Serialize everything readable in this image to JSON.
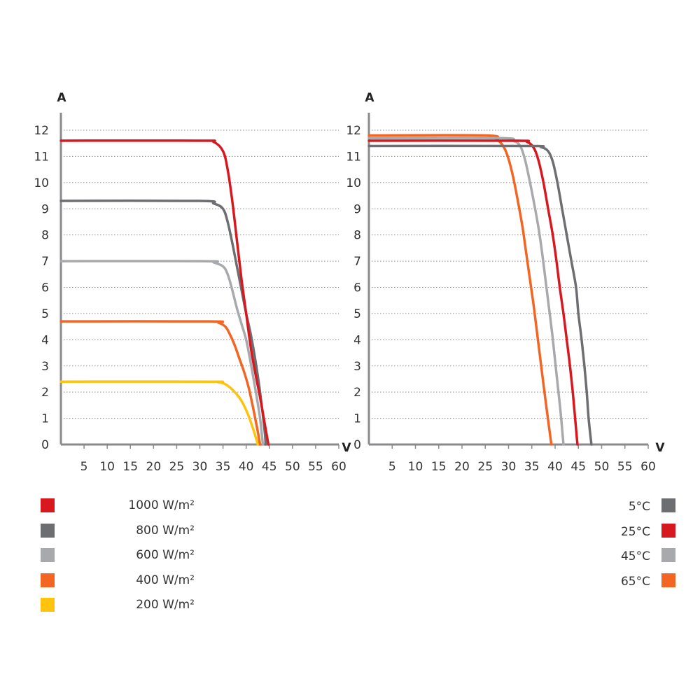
{
  "chart_data": [
    {
      "type": "line",
      "title": "",
      "xlabel": "V",
      "ylabel": "A",
      "xlim": [
        0,
        60
      ],
      "ylim": [
        0,
        12
      ],
      "x_ticks": [
        "5",
        "10",
        "15",
        "20",
        "25",
        "30",
        "35",
        "40",
        "45",
        "60"
      ],
      "x_ticks_all": [
        5,
        10,
        15,
        20,
        25,
        30,
        35,
        40,
        45,
        50,
        55,
        60
      ],
      "x_tick_labels": [
        "5",
        "10",
        "15",
        "20",
        "25",
        "30",
        "35",
        "40",
        "45",
        "50",
        "55",
        "60"
      ],
      "y_ticks": [
        0,
        1,
        2,
        3,
        4,
        5,
        6,
        7,
        8,
        9,
        10,
        11,
        12
      ],
      "y_tick_labels": [
        "0",
        "1",
        "2",
        "3",
        "4",
        "5",
        "6",
        "7",
        "8",
        "9",
        "10",
        "11",
        "12"
      ],
      "grid": "horizontal dotted",
      "legend_position": "bottom-left",
      "series": [
        {
          "name": "1000 W/m²",
          "color": "#d7191f",
          "isc": 11.6,
          "voc": 44.8,
          "points": [
            [
              0,
              11.6
            ],
            [
              30,
              11.6
            ],
            [
              33,
              11.55
            ],
            [
              35,
              11.2
            ],
            [
              36,
              10.5
            ],
            [
              37,
              9.3
            ],
            [
              38,
              7.8
            ],
            [
              39,
              6.3
            ],
            [
              40,
              5.0
            ],
            [
              41,
              3.7
            ],
            [
              42,
              2.7
            ],
            [
              43,
              1.8
            ],
            [
              44,
              0.8
            ],
            [
              44.8,
              0
            ]
          ]
        },
        {
          "name": "800 W/m²",
          "color": "#6d6e71",
          "isc": 9.3,
          "voc": 44.2,
          "points": [
            [
              0,
              9.3
            ],
            [
              30,
              9.3
            ],
            [
              33,
              9.2
            ],
            [
              35,
              9.0
            ],
            [
              36,
              8.5
            ],
            [
              37,
              7.7
            ],
            [
              38,
              6.8
            ],
            [
              39,
              5.9
            ],
            [
              40,
              5.0
            ],
            [
              41,
              4.2
            ],
            [
              42,
              3.2
            ],
            [
              43,
              2.0
            ],
            [
              44,
              0.5
            ],
            [
              44.2,
              0
            ]
          ]
        },
        {
          "name": "600 W/m²",
          "color": "#a7a9ac",
          "isc": 7.0,
          "voc": 43.6,
          "points": [
            [
              0,
              7.0
            ],
            [
              31,
              7.0
            ],
            [
              33,
              6.95
            ],
            [
              35,
              6.8
            ],
            [
              36,
              6.5
            ],
            [
              37,
              5.9
            ],
            [
              38,
              5.2
            ],
            [
              39,
              4.6
            ],
            [
              40,
              4.0
            ],
            [
              41,
              3.1
            ],
            [
              42,
              2.1
            ],
            [
              43,
              1.0
            ],
            [
              43.6,
              0
            ]
          ]
        },
        {
          "name": "400 W/m²",
          "color": "#f26522",
          "isc": 4.7,
          "voc": 43.0,
          "points": [
            [
              0,
              4.7
            ],
            [
              32,
              4.7
            ],
            [
              34,
              4.65
            ],
            [
              35.5,
              4.5
            ],
            [
              36.5,
              4.2
            ],
            [
              37.5,
              3.8
            ],
            [
              38.5,
              3.3
            ],
            [
              39.5,
              2.8
            ],
            [
              40.5,
              2.2
            ],
            [
              41.5,
              1.4
            ],
            [
              42.5,
              0.5
            ],
            [
              43,
              0
            ]
          ]
        },
        {
          "name": "200 W/m²",
          "color": "#ffc20e",
          "isc": 2.4,
          "voc": 42.5,
          "points": [
            [
              0,
              2.4
            ],
            [
              32,
              2.4
            ],
            [
              34,
              2.38
            ],
            [
              35.5,
              2.3
            ],
            [
              37,
              2.1
            ],
            [
              38.5,
              1.8
            ],
            [
              39.5,
              1.5
            ],
            [
              40.5,
              1.1
            ],
            [
              41.5,
              0.6
            ],
            [
              42.2,
              0.2
            ],
            [
              42.5,
              0
            ]
          ]
        }
      ]
    },
    {
      "type": "line",
      "title": "",
      "xlabel": "V",
      "ylabel": "A",
      "xlim": [
        0,
        60
      ],
      "ylim": [
        0,
        12
      ],
      "x_ticks_all": [
        5,
        10,
        15,
        20,
        25,
        30,
        35,
        40,
        45,
        50,
        55,
        60
      ],
      "x_tick_labels": [
        "5",
        "10",
        "15",
        "20",
        "25",
        "30",
        "35",
        "40",
        "45",
        "50",
        "55",
        "60"
      ],
      "y_ticks": [
        0,
        1,
        2,
        3,
        4,
        5,
        6,
        7,
        8,
        9,
        10,
        11,
        12
      ],
      "y_tick_labels": [
        "0",
        "1",
        "2",
        "3",
        "4",
        "5",
        "6",
        "7",
        "8",
        "9",
        "10",
        "11",
        "12"
      ],
      "grid": "horizontal dotted",
      "legend_position": "bottom-right",
      "series": [
        {
          "name": "5°C",
          "color": "#6d6e71",
          "isc": 11.4,
          "voc": 47.8,
          "points": [
            [
              0,
              11.4
            ],
            [
              34,
              11.4
            ],
            [
              37,
              11.35
            ],
            [
              38.5,
              11.2
            ],
            [
              39.5,
              10.8
            ],
            [
              40.5,
              10.0
            ],
            [
              41.5,
              9.0
            ],
            [
              42.5,
              8.0
            ],
            [
              43.5,
              7.0
            ],
            [
              44.5,
              6.0
            ],
            [
              45,
              5.0
            ],
            [
              45.7,
              4.0
            ],
            [
              46.3,
              3.0
            ],
            [
              46.8,
              2.0
            ],
            [
              47.2,
              1.0
            ],
            [
              47.8,
              0
            ]
          ]
        },
        {
          "name": "25°C",
          "color": "#d7191f",
          "isc": 11.6,
          "voc": 44.8,
          "points": [
            [
              0,
              11.6
            ],
            [
              31,
              11.6
            ],
            [
              34,
              11.55
            ],
            [
              35.5,
              11.3
            ],
            [
              36.5,
              10.8
            ],
            [
              37.5,
              10.0
            ],
            [
              38.5,
              9.0
            ],
            [
              39.5,
              8.0
            ],
            [
              40.3,
              7.0
            ],
            [
              41,
              6.0
            ],
            [
              41.8,
              5.0
            ],
            [
              42.5,
              4.0
            ],
            [
              43.2,
              3.0
            ],
            [
              43.8,
              2.0
            ],
            [
              44.3,
              1.0
            ],
            [
              44.8,
              0
            ]
          ]
        },
        {
          "name": "45°C",
          "color": "#a7a9ac",
          "isc": 11.7,
          "voc": 41.8,
          "points": [
            [
              0,
              11.7
            ],
            [
              28,
              11.7
            ],
            [
              31,
              11.6
            ],
            [
              32.5,
              11.4
            ],
            [
              33.5,
              10.9
            ],
            [
              34.5,
              10.1
            ],
            [
              35.5,
              9.2
            ],
            [
              36.5,
              8.2
            ],
            [
              37.3,
              7.2
            ],
            [
              38,
              6.2
            ],
            [
              38.7,
              5.2
            ],
            [
              39.4,
              4.2
            ],
            [
              40,
              3.2
            ],
            [
              40.6,
              2.2
            ],
            [
              41.2,
              1.2
            ],
            [
              41.8,
              0
            ]
          ]
        },
        {
          "name": "65°C",
          "color": "#f26522",
          "isc": 11.8,
          "voc": 39.2,
          "points": [
            [
              0,
              11.8
            ],
            [
              25,
              11.8
            ],
            [
              27.5,
              11.65
            ],
            [
              29,
              11.35
            ],
            [
              30,
              10.9
            ],
            [
              31,
              10.2
            ],
            [
              32,
              9.3
            ],
            [
              33,
              8.3
            ],
            [
              33.8,
              7.3
            ],
            [
              34.6,
              6.3
            ],
            [
              35.4,
              5.3
            ],
            [
              36.1,
              4.3
            ],
            [
              36.8,
              3.3
            ],
            [
              37.5,
              2.3
            ],
            [
              38.3,
              1.2
            ],
            [
              39.2,
              0
            ]
          ]
        }
      ]
    }
  ]
}
